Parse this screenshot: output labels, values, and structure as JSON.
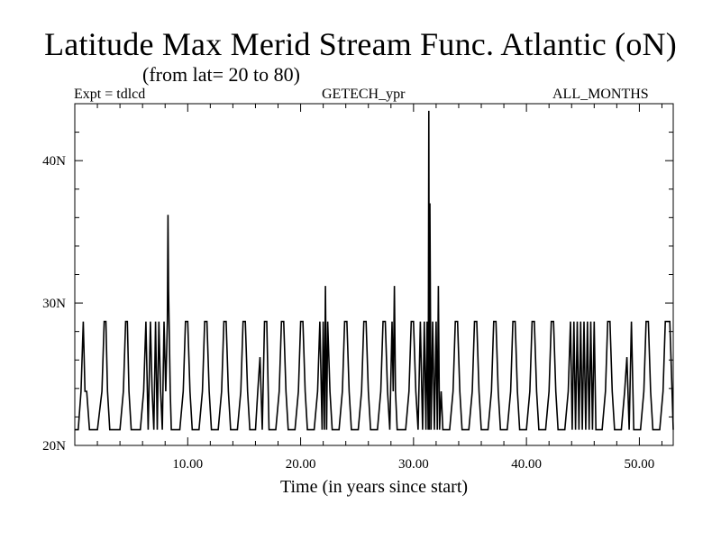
{
  "chart_data": {
    "type": "line",
    "title": "Latitude Max Merid Stream Func. Atlantic (oN)",
    "subtitle": "(from lat= 20 to 80)",
    "header_left": "Expt = tdlcd",
    "header_center": "GETECH_ypr",
    "header_right": "ALL_MONTHS",
    "xlabel": "Time (in years since start)",
    "ylabel": "",
    "xlim": [
      0,
      53
    ],
    "ylim": [
      20,
      44
    ],
    "x_major_ticks": [
      10,
      20,
      30,
      40,
      50
    ],
    "x_tick_labels": [
      "10.00",
      "20.00",
      "30.00",
      "40.00",
      "50.00"
    ],
    "y_major_ticks": [
      20,
      30,
      40
    ],
    "y_tick_labels": [
      "20N",
      "30N",
      "40N"
    ],
    "grid": false,
    "series": [
      {
        "x": [
          0.0,
          0.3,
          0.55,
          0.75,
          0.9,
          1.05,
          1.3,
          1.45,
          2.0,
          2.4,
          2.6,
          2.75,
          2.9,
          3.1,
          3.35,
          4.0,
          4.3,
          4.5,
          4.65,
          4.8,
          5.0,
          5.2,
          5.8,
          6.1,
          6.3,
          6.5,
          6.7,
          6.85,
          7.0,
          7.15,
          7.3,
          7.45,
          7.6,
          7.75,
          7.9,
          8.05,
          8.2,
          8.25,
          8.3,
          8.35,
          8.45,
          8.55,
          8.7,
          9.3,
          9.6,
          9.8,
          10.0,
          10.2,
          10.4,
          11.0,
          11.3,
          11.5,
          11.7,
          11.9,
          12.1,
          12.7,
          13.0,
          13.2,
          13.4,
          13.6,
          13.8,
          14.4,
          14.7,
          14.9,
          15.1,
          15.3,
          15.5,
          16.0,
          16.2,
          16.4,
          16.6,
          16.8,
          17.0,
          17.2,
          17.8,
          18.1,
          18.3,
          18.5,
          18.7,
          18.9,
          19.5,
          19.8,
          20.0,
          20.2,
          20.4,
          20.6,
          21.2,
          21.5,
          21.7,
          21.9,
          22.0,
          22.1,
          22.2,
          22.3,
          22.4,
          22.6,
          22.8,
          23.4,
          23.7,
          23.9,
          24.1,
          24.3,
          24.5,
          25.1,
          25.4,
          25.6,
          25.8,
          26.0,
          26.2,
          26.8,
          27.1,
          27.3,
          27.5,
          27.7,
          27.9,
          28.1,
          28.2,
          28.3,
          28.4,
          28.55,
          28.7,
          29.3,
          29.6,
          29.8,
          30.0,
          30.2,
          30.4,
          30.6,
          30.8,
          30.95,
          31.1,
          31.2,
          31.3,
          31.35,
          31.4,
          31.45,
          31.55,
          31.7,
          31.85,
          32.0,
          32.1,
          32.2,
          32.3,
          32.45,
          32.6,
          33.2,
          33.5,
          33.7,
          33.9,
          34.1,
          34.3,
          34.9,
          35.2,
          35.4,
          35.6,
          35.8,
          36.0,
          36.6,
          36.9,
          37.1,
          37.3,
          37.5,
          37.7,
          38.3,
          38.6,
          38.8,
          39.0,
          39.2,
          39.4,
          40.0,
          40.3,
          40.5,
          40.7,
          40.9,
          41.1,
          41.7,
          42.0,
          42.2,
          42.4,
          42.6,
          42.8,
          43.4,
          43.7,
          43.9,
          44.05,
          44.2,
          44.35,
          44.5,
          44.65,
          44.8,
          44.95,
          45.1,
          45.25,
          45.4,
          45.55,
          45.7,
          45.85,
          46.0,
          46.15,
          46.7,
          47.0,
          47.2,
          47.4,
          47.6,
          47.8,
          48.4,
          48.7,
          48.9,
          49.1,
          49.3,
          49.5,
          50.1,
          50.4,
          50.6,
          50.8,
          51.0,
          51.2,
          51.8,
          52.1,
          52.3,
          52.5,
          52.7,
          52.9,
          53.0
        ],
        "y": [
          21.1,
          21.1,
          23.8,
          28.7,
          23.8,
          23.8,
          21.1,
          21.1,
          21.1,
          23.8,
          28.7,
          28.7,
          23.8,
          21.1,
          21.1,
          21.1,
          23.8,
          28.7,
          28.7,
          23.8,
          21.1,
          21.1,
          21.1,
          23.8,
          28.7,
          21.1,
          28.7,
          23.8,
          21.1,
          28.7,
          21.1,
          28.7,
          23.8,
          21.1,
          28.7,
          23.8,
          28.7,
          36.2,
          31.0,
          28.7,
          23.8,
          21.1,
          21.1,
          21.1,
          23.8,
          28.7,
          28.7,
          23.8,
          21.1,
          21.1,
          23.8,
          28.7,
          28.7,
          23.8,
          21.1,
          21.1,
          23.8,
          28.7,
          28.7,
          23.8,
          21.1,
          21.1,
          23.8,
          28.7,
          28.7,
          23.8,
          21.1,
          21.1,
          23.8,
          26.2,
          21.1,
          28.7,
          28.7,
          21.1,
          21.1,
          23.8,
          28.7,
          28.7,
          23.8,
          21.1,
          21.1,
          23.8,
          28.7,
          28.7,
          23.8,
          21.1,
          21.1,
          23.8,
          28.7,
          21.1,
          28.7,
          21.1,
          31.2,
          21.1,
          28.7,
          23.8,
          21.1,
          21.1,
          23.8,
          28.7,
          28.7,
          23.8,
          21.1,
          21.1,
          23.8,
          28.7,
          28.7,
          23.8,
          21.1,
          21.1,
          23.8,
          28.7,
          28.7,
          23.8,
          21.1,
          28.7,
          23.8,
          31.2,
          23.8,
          21.1,
          21.1,
          21.1,
          23.8,
          28.7,
          28.7,
          23.8,
          21.1,
          28.7,
          21.1,
          28.7,
          21.1,
          28.7,
          21.1,
          43.5,
          21.1,
          37.0,
          21.1,
          28.7,
          21.1,
          28.7,
          21.1,
          31.2,
          21.1,
          23.8,
          21.1,
          21.1,
          23.8,
          28.7,
          28.7,
          23.8,
          21.1,
          21.1,
          23.8,
          28.7,
          28.7,
          23.8,
          21.1,
          21.1,
          23.8,
          28.7,
          28.7,
          23.8,
          21.1,
          21.1,
          23.8,
          28.7,
          28.7,
          23.8,
          21.1,
          21.1,
          23.8,
          28.7,
          28.7,
          23.8,
          21.1,
          21.1,
          23.8,
          28.7,
          28.7,
          23.8,
          21.1,
          21.1,
          23.8,
          28.7,
          21.1,
          28.7,
          21.1,
          28.7,
          21.1,
          28.7,
          21.1,
          28.7,
          21.1,
          28.7,
          21.1,
          28.7,
          21.1,
          28.7,
          21.1,
          21.1,
          23.8,
          28.7,
          28.7,
          23.8,
          21.1,
          21.1,
          23.8,
          26.2,
          21.1,
          28.7,
          21.1,
          21.1,
          23.8,
          28.7,
          28.7,
          23.8,
          21.1,
          21.1,
          23.8,
          28.7,
          28.7,
          28.7,
          23.8,
          21.1
        ]
      }
    ]
  }
}
